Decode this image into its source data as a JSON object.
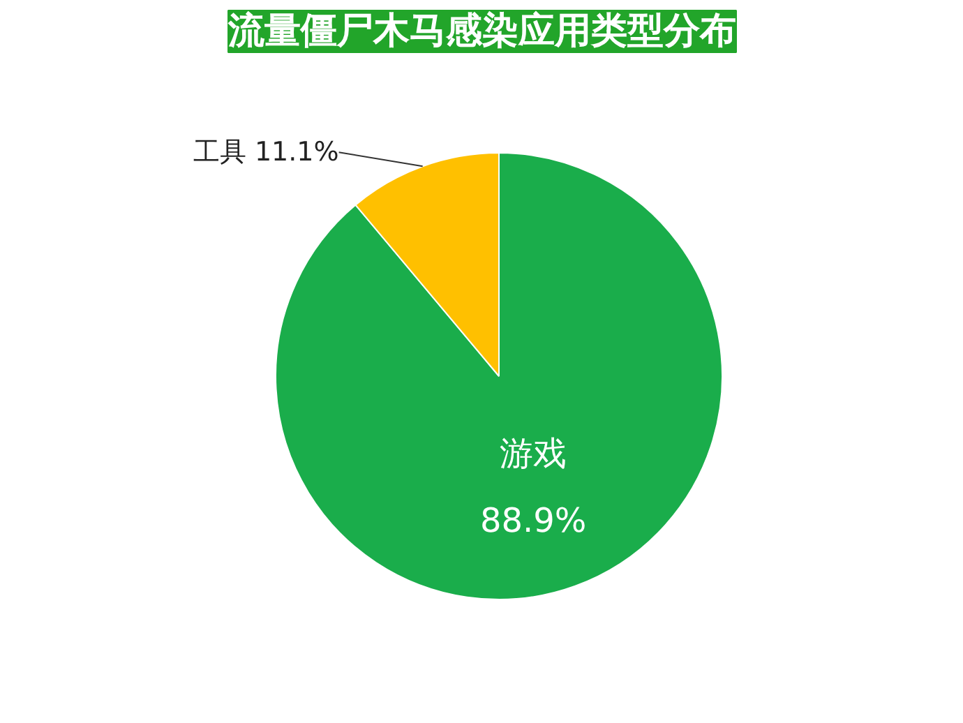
{
  "chart_data": {
    "type": "pie",
    "title": "流量僵尸木马感染应用类型分布",
    "categories": [
      "游戏",
      "工具"
    ],
    "values": [
      88.9,
      11.1
    ],
    "colors": [
      "#1aad4b",
      "#ffc000"
    ],
    "value_labels": [
      "88.9%",
      "11.1%"
    ]
  }
}
